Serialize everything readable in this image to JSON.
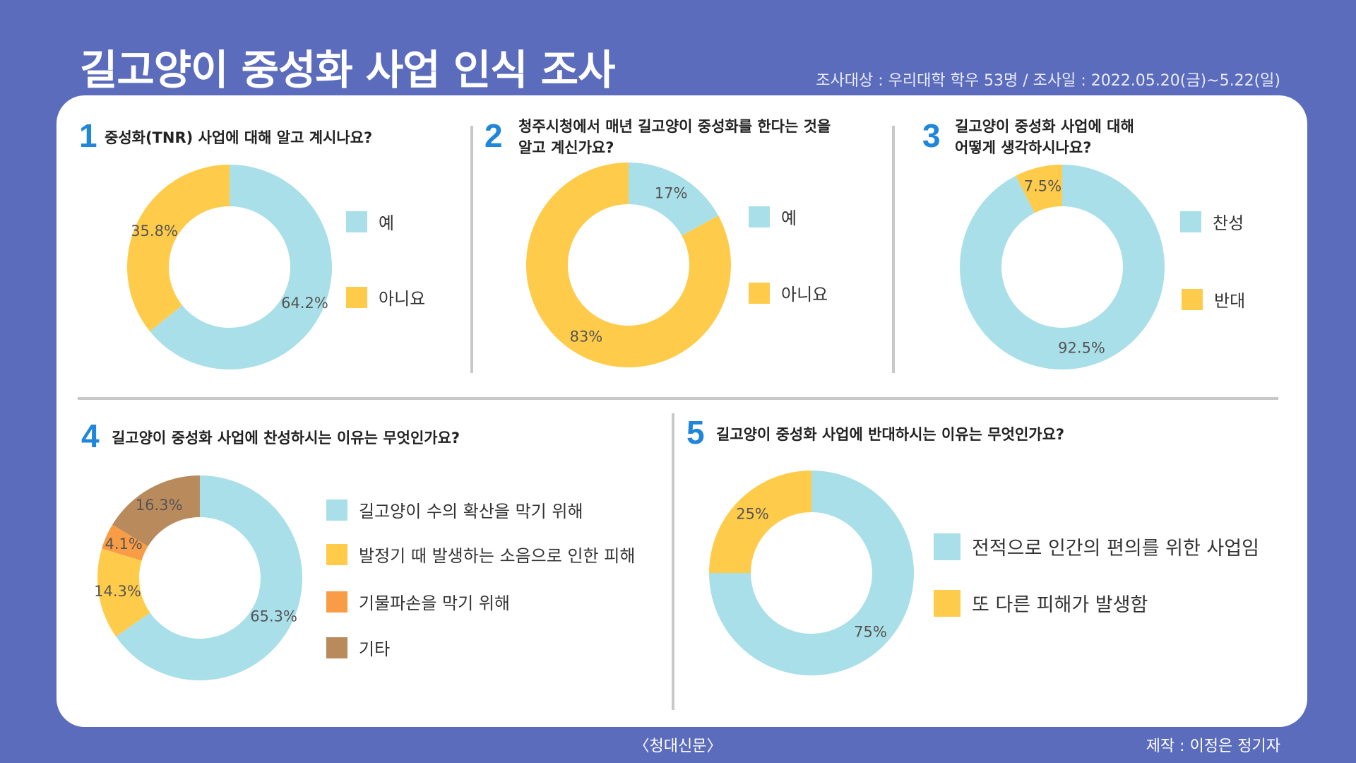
{
  "header": {
    "title": "길고양이 중성화 사업 인식 조사",
    "survey_info": "조사대상 : 우리대학 학우 53명 / 조사일 : 2022.05.20(금)~5.22(일)"
  },
  "colors": {
    "background": "#5c6cbd",
    "accent_number": "#1f86d9",
    "light_blue": "#a9dfe8",
    "yellow": "#ffcb4a",
    "orange": "#f89c45",
    "brown": "#b98a5c"
  },
  "questions": [
    {
      "number": "1",
      "text": "중성화(TNR) 사업에 대해 알고 계시나요?"
    },
    {
      "number": "2",
      "line1": "청주시청에서 매년 길고양이 중성화를 한다는 것을",
      "line2": "알고 계신가요?"
    },
    {
      "number": "3",
      "line1": "길고양이 중성화 사업에 대해",
      "line2": "어떻게 생각하시나요?"
    },
    {
      "number": "4",
      "text": "길고양이 중성화 사업에 찬성하시는 이유는 무엇인가요?"
    },
    {
      "number": "5",
      "text": "길고양이 중성화 사업에 반대하시는 이유는 무엇인가요?"
    }
  ],
  "legends": {
    "q1": [
      "예",
      "아니요"
    ],
    "q2": [
      "예",
      "아니요"
    ],
    "q3": [
      "찬성",
      "반대"
    ],
    "q4": [
      "길고양이 수의 확산을 막기 위해",
      "발정기 때 발생하는 소음으로 인한 피해",
      "기물파손을 막기 위해",
      "기타"
    ],
    "q5": [
      "전적으로 인간의 편의를 위한 사업임",
      "또 다른 피해가 발생함"
    ]
  },
  "chart_data": [
    {
      "type": "pie",
      "title": "중성화(TNR) 사업에 대해 알고 계시나요?",
      "categories": [
        "예",
        "아니요"
      ],
      "values": [
        64.2,
        35.8
      ],
      "labels": [
        "64.2%",
        "35.8%"
      ]
    },
    {
      "type": "pie",
      "title": "청주시청에서 매년 길고양이 중성화를 한다는 것을 알고 계신가요?",
      "categories": [
        "예",
        "아니요"
      ],
      "values": [
        17,
        83
      ],
      "labels": [
        "17%",
        "83%"
      ]
    },
    {
      "type": "pie",
      "title": "길고양이 중성화 사업에 대해 어떻게 생각하시나요?",
      "categories": [
        "찬성",
        "반대"
      ],
      "values": [
        92.5,
        7.5
      ],
      "labels": [
        "92.5%",
        "7.5%"
      ]
    },
    {
      "type": "pie",
      "title": "길고양이 중성화 사업에 찬성하시는 이유는 무엇인가요?",
      "categories": [
        "길고양이 수의 확산을 막기 위해",
        "발정기 때 발생하는 소음으로 인한 피해",
        "기물파손을 막기 위해",
        "기타"
      ],
      "values": [
        65.3,
        14.3,
        4.1,
        16.3
      ],
      "labels": [
        "65.3%",
        "14.3%",
        "4.1%",
        "16.3%"
      ]
    },
    {
      "type": "pie",
      "title": "길고양이 중성화 사업에 반대하시는 이유는 무엇인가요?",
      "categories": [
        "전적으로 인간의 편의를 위한 사업임",
        "또 다른 피해가 발생함"
      ],
      "values": [
        75,
        25
      ],
      "labels": [
        "75%",
        "25%"
      ]
    }
  ],
  "footer": {
    "source": "〈청대신문〉",
    "credit": "제작 : 이정은 정기자"
  }
}
